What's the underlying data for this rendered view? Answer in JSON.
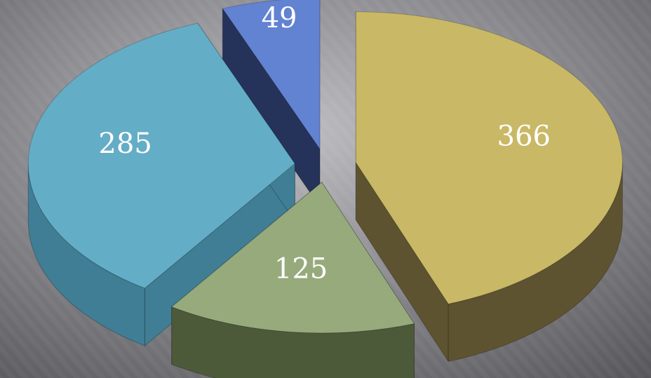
{
  "chart_data": {
    "type": "pie",
    "title": "",
    "style": "3d-exploded",
    "legend": "none",
    "values": [
      366,
      125,
      285,
      49
    ],
    "labels": [
      "366",
      "125",
      "285",
      "49"
    ],
    "colors": {
      "top": [
        "#c9b865",
        "#97aa7c",
        "#64adc6",
        "#6282d2"
      ],
      "side": [
        "#5e5330",
        "#4d5a3a",
        "#3f7e95",
        "#25325a"
      ]
    }
  },
  "background": {
    "inner": "#bdbdc2",
    "outer": "#55555a"
  }
}
